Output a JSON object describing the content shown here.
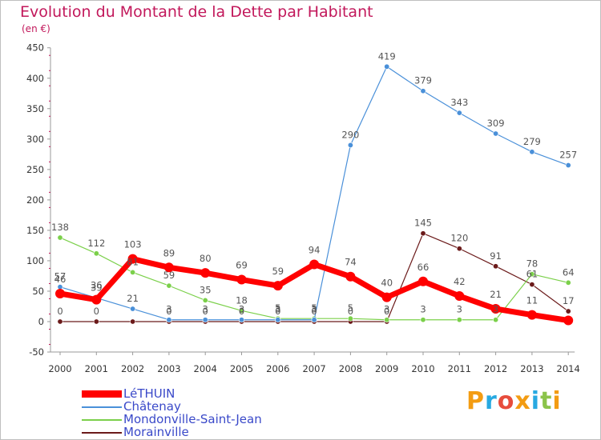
{
  "brand": {
    "text": "Proxiti",
    "colors": [
      "#f39c12",
      "#27a9e1",
      "#e74c3c",
      "#f39c12",
      "#27a9e1",
      "#8bc34a",
      "#f39c12"
    ]
  },
  "chart_data": {
    "type": "line",
    "title": "Evolution du Montant de la Dette par Habitant",
    "subtitle": "(en €)",
    "xlabel": "",
    "ylabel": "",
    "x": [
      "2000",
      "2001",
      "2002",
      "2003",
      "2004",
      "2005",
      "2006",
      "2007",
      "2008",
      "2009",
      "2010",
      "2011",
      "2012",
      "2013",
      "2014"
    ],
    "ylim": [
      -50,
      450
    ],
    "yticks": [
      "-50",
      "0",
      "50",
      "100",
      "150",
      "200",
      "250",
      "300",
      "350",
      "400",
      "450"
    ],
    "grid": false,
    "legend_position": "bottom-left",
    "series": [
      {
        "name": "LéTHUIN",
        "color": "#ff0000",
        "values": [
          46,
          36,
          103,
          89,
          80,
          69,
          59,
          94,
          74,
          40,
          66,
          42,
          21,
          11,
          2
        ],
        "labels": [
          "46",
          "36",
          "103",
          "89",
          "80",
          "69",
          "59",
          "94",
          "74",
          "40",
          "66",
          "42",
          "21",
          "11",
          ""
        ]
      },
      {
        "name": "Châtenay",
        "color": "#4a90d9",
        "values": [
          57,
          39,
          21,
          3,
          3,
          3,
          3,
          3,
          290,
          419,
          379,
          343,
          309,
          279,
          257
        ],
        "labels": [
          "57",
          "39",
          "21",
          "3",
          "3",
          "3",
          "3",
          "3",
          "290",
          "419",
          "379",
          "343",
          "309",
          "279",
          "257"
        ]
      },
      {
        "name": "Mondonville-Saint-Jean",
        "color": "#7bd04a",
        "values": [
          138,
          112,
          81,
          59,
          35,
          18,
          5,
          5,
          5,
          3,
          3,
          3,
          3,
          78,
          64
        ],
        "labels": [
          "138",
          "112",
          "81",
          "59",
          "35",
          "18",
          "5",
          "5",
          "5",
          "3",
          "3",
          "3",
          "3",
          "78",
          "64"
        ]
      },
      {
        "name": "Morainville",
        "color": "#6b1a1a",
        "values": [
          0,
          0,
          0,
          0,
          0,
          0,
          0,
          0,
          0,
          0,
          145,
          120,
          91,
          61,
          17
        ],
        "labels": [
          "0",
          "0",
          "",
          "0",
          "0",
          "0",
          "0",
          "0",
          "0",
          "0",
          "145",
          "120",
          "91",
          "61",
          "17"
        ]
      }
    ]
  }
}
